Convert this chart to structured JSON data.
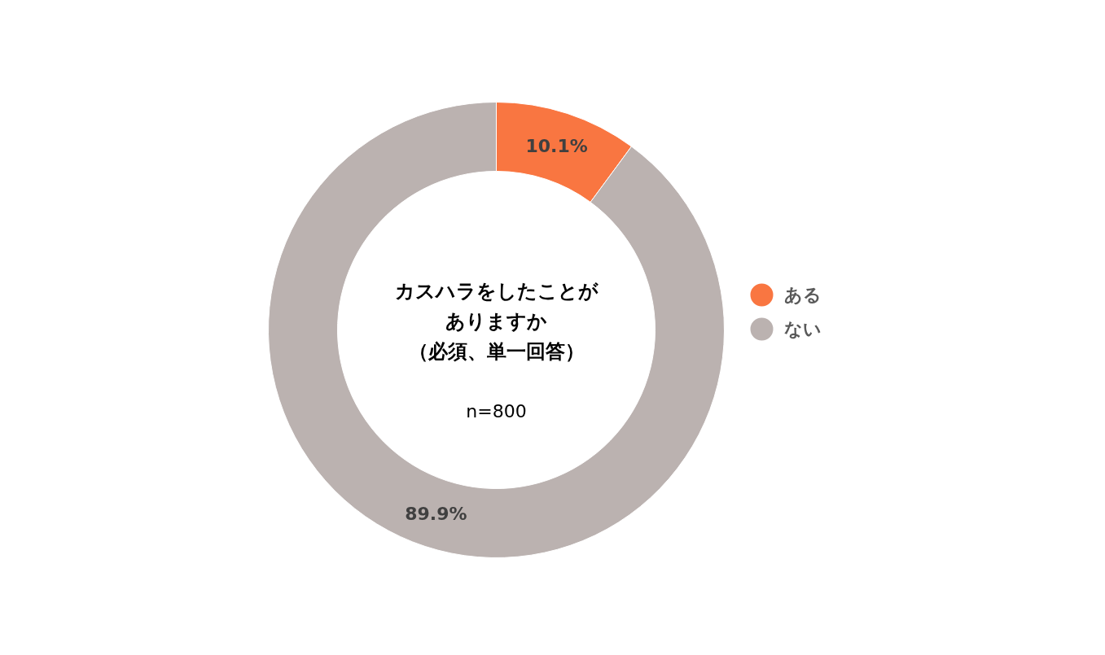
{
  "chart_data": {
    "type": "donut",
    "title": "カスハラをしたことがありますか",
    "subtitle": "（必須、単一回答）",
    "annotations": [
      "n=800"
    ],
    "categories": [
      "ある",
      "ない"
    ],
    "values": [
      10.1,
      89.9
    ],
    "value_labels": [
      "10.1%",
      "89.9%"
    ],
    "colors": [
      "#f97641",
      "#bbb2b0"
    ],
    "legend": "right"
  }
}
